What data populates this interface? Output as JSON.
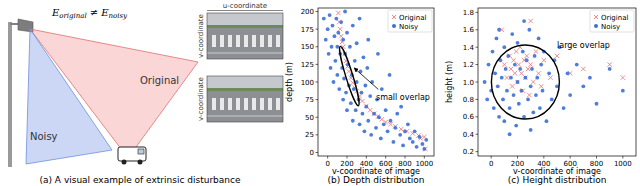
{
  "panel_a": {
    "caption": "(a) A visual example of extrinsic disturbance",
    "equation": {
      "lhs": "E",
      "lhs_sub": "original",
      "op": "≠",
      "rhs": "E",
      "rhs_sub": "noisy"
    },
    "labels": [
      "Original",
      "Noisy"
    ],
    "image_axes": {
      "u": "u-coordinate",
      "v": "v-coordinate"
    }
  },
  "chart_data": [
    {
      "type": "scatter",
      "title": "(b) Depth distribution",
      "x_label": "v-coordinate of image",
      "y_label": "depth (m)",
      "xlim": [
        -100,
        1100
      ],
      "ylim": [
        -5,
        205
      ],
      "xticks": [
        0,
        200,
        400,
        600,
        800,
        1000
      ],
      "yticks": [
        0,
        25,
        50,
        75,
        100,
        125,
        150,
        175,
        200
      ],
      "grid": false,
      "legend": "upper right",
      "annotations": [
        "small overlap"
      ],
      "series": [
        {
          "name": "Original",
          "color": "#ee7f86",
          "marker": "x",
          "x": [
            110,
            120,
            130,
            140,
            150,
            160,
            175,
            190,
            205,
            220,
            240,
            260,
            280,
            300,
            330,
            360,
            400,
            440,
            480,
            520,
            560,
            600,
            650,
            700,
            760,
            820,
            880,
            940,
            1000,
            960,
            1010
          ],
          "values": [
            198,
            185,
            175,
            165,
            157,
            150,
            140,
            130,
            122,
            115,
            106,
            99,
            92,
            87,
            80,
            73,
            66,
            60,
            55,
            51,
            47,
            43,
            40,
            37,
            33,
            30,
            27,
            24,
            22,
            20,
            5
          ]
        },
        {
          "name": "Noisy",
          "color": "#3b6fd6",
          "marker": "o",
          "x": [
            -40,
            -20,
            0,
            10,
            20,
            30,
            40,
            50,
            60,
            70,
            80,
            90,
            100,
            100,
            110,
            120,
            130,
            140,
            150,
            160,
            160,
            170,
            180,
            190,
            200,
            200,
            210,
            220,
            230,
            240,
            250,
            260,
            260,
            270,
            280,
            290,
            300,
            300,
            320,
            330,
            340,
            350,
            360,
            370,
            380,
            390,
            400,
            410,
            420,
            440,
            450,
            460,
            480,
            500,
            510,
            530,
            550,
            560,
            580,
            600,
            620,
            650,
            680,
            700,
            720,
            750,
            780,
            800,
            830,
            850,
            880,
            900,
            920,
            950,
            980,
            1000,
            1020,
            760,
            640,
            520,
            180,
            330,
            420
          ],
          "values": [
            190,
            160,
            175,
            140,
            195,
            120,
            150,
            180,
            100,
            165,
            130,
            190,
            110,
            150,
            170,
            90,
            140,
            185,
            120,
            75,
            160,
            105,
            140,
            85,
            170,
            60,
            125,
            95,
            150,
            70,
            110,
            180,
            45,
            90,
            130,
            60,
            100,
            155,
            75,
            40,
            115,
            85,
            55,
            135,
            30,
            95,
            65,
            120,
            45,
            80,
            25,
            100,
            55,
            35,
            75,
            50,
            20,
            90,
            40,
            60,
            30,
            45,
            15,
            35,
            55,
            25,
            10,
            30,
            40,
            20,
            15,
            30,
            8,
            22,
            12,
            5,
            18,
            65,
            110,
            140,
            200,
            190,
            160
          ]
        }
      ]
    },
    {
      "type": "scatter",
      "title": "(c) Height distribution",
      "x_label": "v-coordinate of image",
      "y_label": "height (m)",
      "xlim": [
        -100,
        1100
      ],
      "ylim": [
        0.15,
        1.85
      ],
      "xticks": [
        0,
        200,
        400,
        600,
        800,
        1000
      ],
      "yticks": [
        0.2,
        0.4,
        0.6,
        0.8,
        {
          "value": 1,
          "label": "1.0"
        },
        1.2,
        1.4,
        1.6,
        1.8
      ],
      "grid": false,
      "legend": "upper right",
      "annotations": [
        "large overlap"
      ],
      "series": [
        {
          "name": "Original",
          "color": "#ee7f86",
          "marker": "x",
          "x": [
            100,
            120,
            140,
            150,
            160,
            170,
            180,
            190,
            200,
            210,
            220,
            230,
            240,
            250,
            260,
            270,
            280,
            290,
            300,
            320,
            340,
            360,
            380,
            400,
            450,
            500,
            600,
            700,
            900,
            1000,
            80,
            300
          ],
          "values": [
            1.2,
            1.05,
            1.3,
            1.15,
            0.95,
            1.25,
            1.1,
            1.35,
            1.0,
            1.2,
            1.4,
            1.1,
            0.9,
            1.25,
            1.05,
            1.3,
            1.15,
            0.85,
            1.2,
            1.0,
            1.35,
            1.1,
            0.95,
            1.25,
            1.05,
            1.3,
            1.1,
            1.15,
            1.2,
            1.05,
            1.6,
            1.7
          ]
        },
        {
          "name": "Noisy",
          "color": "#3b6fd6",
          "marker": "o",
          "x": [
            -50,
            -30,
            -20,
            0,
            10,
            20,
            30,
            40,
            50,
            60,
            70,
            80,
            90,
            100,
            100,
            110,
            120,
            130,
            140,
            150,
            160,
            170,
            180,
            190,
            200,
            200,
            210,
            220,
            230,
            240,
            250,
            260,
            270,
            280,
            290,
            300,
            310,
            320,
            330,
            340,
            350,
            360,
            370,
            380,
            390,
            400,
            420,
            440,
            460,
            480,
            500,
            520,
            550,
            580,
            600,
            650,
            700,
            750,
            800,
            900,
            1000,
            140,
            300,
            250,
            60
          ],
          "values": [
            1.0,
            0.8,
            1.2,
            0.9,
            1.35,
            0.7,
            1.1,
            1.5,
            0.95,
            0.6,
            1.25,
            1.05,
            0.8,
            1.4,
            0.55,
            1.15,
            0.9,
            1.3,
            0.7,
            1.05,
            1.55,
            0.85,
            1.2,
            0.5,
            1.0,
            1.45,
            0.75,
            1.15,
            0.9,
            1.35,
            0.6,
            1.05,
            1.25,
            0.8,
            1.6,
            0.95,
            1.15,
            0.65,
            1.3,
            0.85,
            1.05,
            1.5,
            0.7,
            1.2,
            0.9,
            1.35,
            0.55,
            1.1,
            0.8,
            1.25,
            0.95,
            1.4,
            0.7,
            1.1,
            0.85,
            1.2,
            0.95,
            1.05,
            0.75,
            1.15,
            0.9,
            0.4,
            0.45,
            1.7,
            1.6
          ]
        }
      ]
    }
  ]
}
